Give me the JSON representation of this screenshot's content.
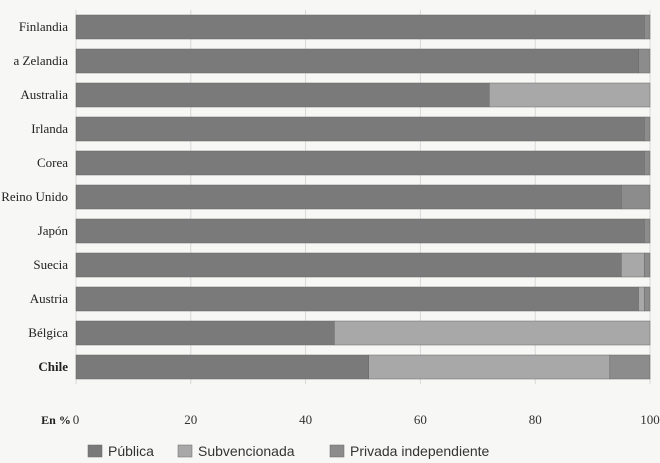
{
  "chart_data": {
    "type": "bar",
    "orientation": "horizontal",
    "stacked": true,
    "categories": [
      "Finlandia",
      "Nueva Zelandia",
      "Australia",
      "Irlanda",
      "Corea",
      "Reino Unido",
      "Japón",
      "Suecia",
      "Austria",
      "Bélgica",
      "Chile"
    ],
    "displayed_categories": [
      "Finlandia",
      "a Zelandia",
      "Australia",
      "Irlanda",
      "Corea",
      "Reino Unido",
      "Japón",
      "Suecia",
      "Austria",
      "Bélgica",
      "Chile"
    ],
    "bold_category": "Chile",
    "series": [
      {
        "name": "Pública",
        "color": "#7a7a7a",
        "values": [
          99,
          98,
          72,
          99,
          99,
          95,
          99,
          95,
          98,
          45,
          51
        ]
      },
      {
        "name": "Subvencionada",
        "color": "#a8a8a8",
        "values": [
          0,
          0,
          28,
          0,
          0,
          0,
          0,
          4,
          1,
          55,
          42
        ]
      },
      {
        "name": "Privada independiente",
        "color": "#8c8c8c",
        "values": [
          1,
          2,
          0,
          1,
          1,
          5,
          1,
          1,
          1,
          0,
          7
        ]
      }
    ],
    "xlim": [
      0,
      100
    ],
    "xticks": [
      0,
      20,
      40,
      60,
      80,
      100
    ],
    "xtick_labels": [
      "0",
      "20",
      "40",
      "60",
      "80",
      "100"
    ],
    "xlabel": "En %",
    "legend_position": "bottom"
  }
}
